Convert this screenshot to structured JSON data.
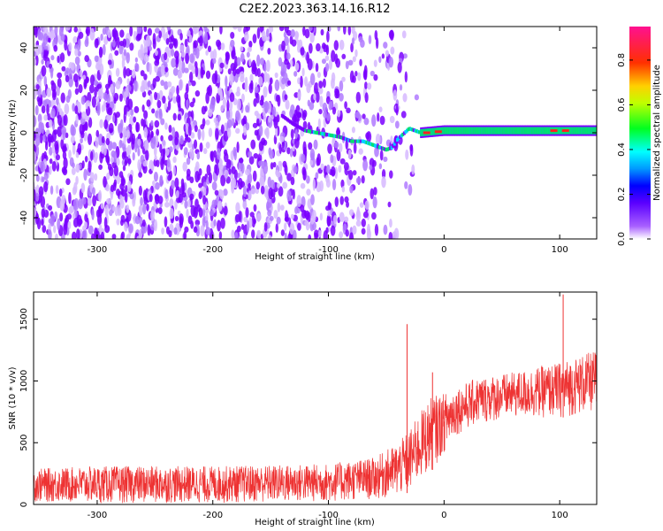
{
  "page_title": "C2E2.2023.363.14.16.R12",
  "chart_data": [
    {
      "type": "heatmap",
      "xlabel": "Height of straight line (km)",
      "ylabel": "Frequency (Hz)",
      "xlim": [
        -355,
        132
      ],
      "ylim": [
        -50,
        50
      ],
      "x_ticks": [
        -300,
        -200,
        -100,
        0,
        100
      ],
      "y_ticks": [
        -40,
        -20,
        0,
        20,
        40
      ],
      "colorbar": {
        "label": "Normalized spectral amplitude",
        "range": [
          0.0,
          0.95
        ],
        "ticks": [
          0.0,
          0.2,
          0.4,
          0.6,
          0.8
        ]
      },
      "signal_track": [
        {
          "x": -140,
          "y": 8
        },
        {
          "x": -130,
          "y": 4
        },
        {
          "x": -120,
          "y": 1
        },
        {
          "x": -110,
          "y": 0
        },
        {
          "x": -100,
          "y": -1
        },
        {
          "x": -90,
          "y": -2
        },
        {
          "x": -80,
          "y": -4
        },
        {
          "x": -70,
          "y": -4
        },
        {
          "x": -60,
          "y": -6
        },
        {
          "x": -50,
          "y": -8
        },
        {
          "x": -45,
          "y": -7
        },
        {
          "x": -40,
          "y": -3
        },
        {
          "x": -30,
          "y": 2
        },
        {
          "x": -20,
          "y": 0
        },
        {
          "x": 0,
          "y": 1
        },
        {
          "x": 50,
          "y": 1
        },
        {
          "x": 100,
          "y": 1
        },
        {
          "x": 130,
          "y": 1
        }
      ],
      "noise_region": {
        "x_from": -355,
        "x_to": -40,
        "fading_to": -20
      },
      "colors": {
        "purple": "#7a00ff",
        "light_purple": "#d6b8ff",
        "cyan": "#00d0ff",
        "green": "#00e070",
        "red": "#ff2020"
      }
    },
    {
      "type": "line",
      "xlabel": "Height of straight line (km)",
      "ylabel": "SNR (10 * v/v)",
      "xlim": [
        -355,
        132
      ],
      "ylim": [
        0,
        1720
      ],
      "x_ticks": [
        -300,
        -200,
        -100,
        0,
        100
      ],
      "y_ticks": [
        0,
        500,
        1000,
        1500
      ],
      "series_color": "#ee3333",
      "envelope": [
        {
          "x": -355,
          "low": 20,
          "high": 290
        },
        {
          "x": -300,
          "low": 10,
          "high": 310
        },
        {
          "x": -200,
          "low": 10,
          "high": 310
        },
        {
          "x": -100,
          "low": 20,
          "high": 330
        },
        {
          "x": -60,
          "low": 40,
          "high": 380
        },
        {
          "x": -40,
          "low": 60,
          "high": 500
        },
        {
          "x": -30,
          "low": 100,
          "high": 600
        },
        {
          "x": -20,
          "low": 200,
          "high": 760
        },
        {
          "x": -10,
          "low": 280,
          "high": 880
        },
        {
          "x": 0,
          "low": 420,
          "high": 900
        },
        {
          "x": 10,
          "low": 560,
          "high": 950
        },
        {
          "x": 30,
          "low": 650,
          "high": 1030
        },
        {
          "x": 60,
          "low": 700,
          "high": 1070
        },
        {
          "x": 100,
          "low": 700,
          "high": 1150
        },
        {
          "x": 132,
          "low": 750,
          "high": 1250
        }
      ],
      "spikes": [
        {
          "x": -32,
          "value": 1460
        },
        {
          "x": 103,
          "value": 1700
        },
        {
          "x": -10,
          "value": 1070
        }
      ]
    }
  ]
}
